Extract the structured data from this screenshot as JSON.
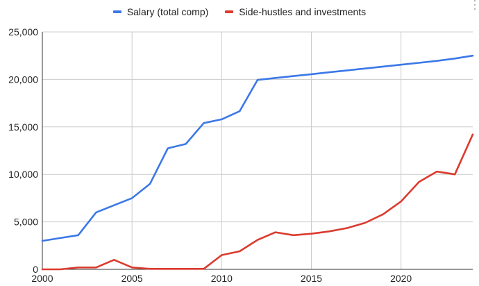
{
  "chart_data": {
    "type": "line",
    "title": "",
    "xlabel": "",
    "ylabel": "",
    "xlim": [
      2000,
      2024
    ],
    "ylim": [
      0,
      25000
    ],
    "grid": true,
    "legend_position": "top",
    "xticks": [
      2000,
      2005,
      2010,
      2015,
      2020
    ],
    "xtick_labels": [
      "2000",
      "2005",
      "2010",
      "2015",
      "2020"
    ],
    "yticks": [
      0,
      5000,
      10000,
      15000,
      20000,
      25000
    ],
    "ytick_labels": [
      "0",
      "5,000",
      "10,000",
      "15,000",
      "20,000",
      "25,000"
    ],
    "x": [
      2000,
      2001,
      2002,
      2003,
      2004,
      2005,
      2006,
      2007,
      2008,
      2009,
      2010,
      2011,
      2012,
      2013,
      2014,
      2015,
      2016,
      2017,
      2018,
      2019,
      2020,
      2021,
      2022,
      2023,
      2024
    ],
    "series": [
      {
        "name": "Salary (total comp)",
        "color": "#3b78e7",
        "values": [
          3000,
          3300,
          3600,
          6000,
          6750,
          7500,
          9000,
          12750,
          13200,
          15400,
          15800,
          16650,
          19950,
          20150,
          20350,
          20550,
          20750,
          20950,
          21150,
          21350,
          21550,
          21750,
          21950,
          22200,
          22500
        ]
      },
      {
        "name": "Side-hustles and investments",
        "color": "#db3b2e",
        "values": [
          0,
          0,
          200,
          200,
          1000,
          200,
          50,
          50,
          50,
          50,
          1500,
          1900,
          3100,
          3900,
          3600,
          3750,
          4000,
          4350,
          4900,
          5800,
          7150,
          9200,
          10300,
          10000,
          14200
        ]
      }
    ]
  },
  "ui": {
    "menu_icon": "more-vert-icon"
  }
}
